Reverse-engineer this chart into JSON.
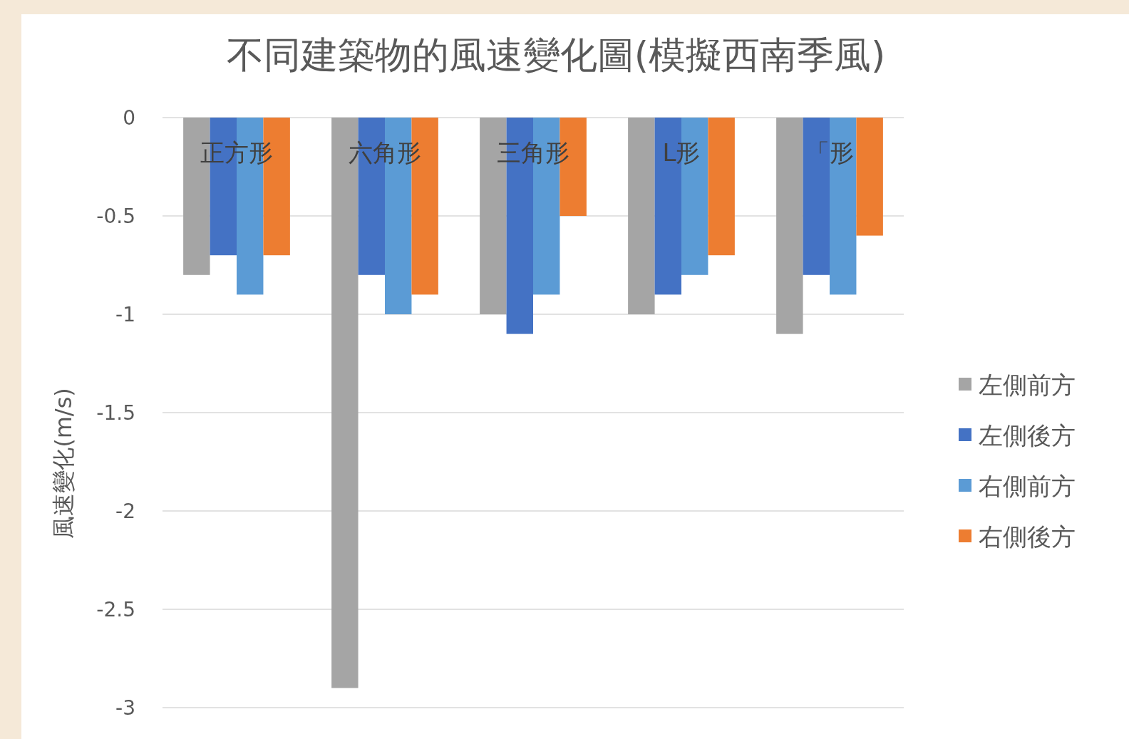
{
  "chart_data": {
    "type": "bar",
    "title": "不同建築物的風速變化圖(模擬西南季風)",
    "ylabel": "風速變化(m/s)",
    "categories": [
      "正方形",
      "六角形",
      "三角形",
      "L形",
      "「形"
    ],
    "series": [
      {
        "name": "左側前方",
        "color": "#a5a5a5",
        "values": [
          -0.8,
          -2.9,
          -1.0,
          -1.0,
          -1.1
        ]
      },
      {
        "name": "左側後方",
        "color": "#4472c4",
        "values": [
          -0.7,
          -0.8,
          -1.1,
          -0.9,
          -0.8
        ]
      },
      {
        "name": "右側前方",
        "color": "#5b9bd5",
        "values": [
          -0.9,
          -1.0,
          -0.9,
          -0.8,
          -0.9
        ]
      },
      {
        "name": "右側後方",
        "color": "#ed7d31",
        "values": [
          -0.7,
          -0.9,
          -0.5,
          -0.7,
          -0.6
        ]
      }
    ],
    "ylim": [
      -3,
      0
    ],
    "yticks": [
      0,
      -0.5,
      -1,
      -1.5,
      -2,
      -2.5,
      -3
    ],
    "grid": "y",
    "legend": "right"
  }
}
